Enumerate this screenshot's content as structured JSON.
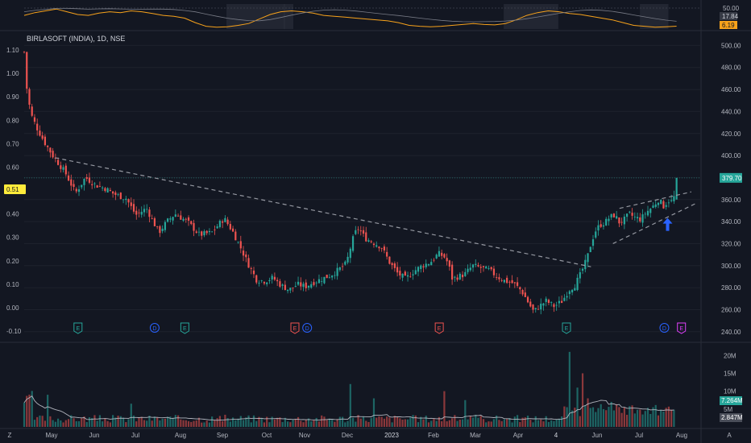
{
  "header": {
    "symbol_title": "BIRLASOFT (INDIA), 1D, NSE"
  },
  "colors": {
    "background": "#131722",
    "up": "#26a69a",
    "down": "#ef5350",
    "trendline": "#9598a1",
    "oscillator": "#f7a21b",
    "oscillator_sma": "#787b86",
    "volume_ma": "#b2b5be",
    "arrow": "#2962ff",
    "earnings": "#26a69a",
    "earnings_miss": "#ef5350",
    "dividend": "#2962ff",
    "earnings_upcoming": "#e040fb"
  },
  "chart_data": {
    "type": "candlestick",
    "title": "BIRLASOFT (INDIA), 1D, NSE",
    "x_ticks": [
      "Z",
      "May",
      "Jun",
      "Jul",
      "Aug",
      "Sep",
      "Oct",
      "Nov",
      "Dec",
      "2023",
      "Feb",
      "Mar",
      "Apr",
      "4",
      "Jun",
      "Jul",
      "Aug"
    ],
    "price_axis": {
      "ticks": [
        "500.00",
        "480.00",
        "460.00",
        "440.00",
        "420.00",
        "400.00",
        "380.00",
        "360.00",
        "340.00",
        "320.00",
        "300.00",
        "280.00",
        "260.00",
        "240.00"
      ],
      "range": [
        234,
        512
      ],
      "last_price_label": "379.70"
    },
    "left_axis": {
      "ticks": [
        "1.10",
        "1.00",
        "0.90",
        "0.80",
        "0.70",
        "0.60",
        "0.50",
        "0.40",
        "0.30",
        "0.20",
        "0.10",
        "0.00",
        "-0.10"
      ],
      "current_label": "0.51"
    },
    "price_path": {
      "points": [
        [
          0,
          494
        ],
        [
          1,
          503
        ],
        [
          2,
          485
        ],
        [
          3,
          462
        ],
        [
          8,
          438
        ],
        [
          15,
          426
        ],
        [
          25,
          412
        ],
        [
          35,
          400
        ],
        [
          50,
          385
        ],
        [
          63,
          366
        ],
        [
          75,
          380
        ],
        [
          88,
          373
        ],
        [
          100,
          370
        ],
        [
          110,
          365
        ],
        [
          125,
          361
        ],
        [
          137,
          346
        ],
        [
          150,
          352
        ],
        [
          165,
          330
        ],
        [
          175,
          340
        ],
        [
          185,
          347
        ],
        [
          200,
          340
        ],
        [
          215,
          328
        ],
        [
          230,
          330
        ],
        [
          245,
          343
        ],
        [
          255,
          332
        ],
        [
          265,
          317
        ],
        [
          275,
          301
        ],
        [
          285,
          287
        ],
        [
          295,
          286
        ],
        [
          305,
          289
        ],
        [
          315,
          282
        ],
        [
          325,
          278
        ],
        [
          335,
          283
        ],
        [
          345,
          281
        ],
        [
          355,
          285
        ],
        [
          365,
          288
        ],
        [
          375,
          291
        ],
        [
          385,
          296
        ],
        [
          395,
          302
        ],
        [
          400,
          316
        ],
        [
          405,
          329
        ],
        [
          410,
          334
        ],
        [
          418,
          325
        ],
        [
          428,
          321
        ],
        [
          438,
          317
        ],
        [
          448,
          303
        ],
        [
          458,
          293
        ],
        [
          468,
          288
        ],
        [
          478,
          295
        ],
        [
          488,
          300
        ],
        [
          498,
          303
        ],
        [
          508,
          311
        ],
        [
          515,
          308
        ],
        [
          520,
          302
        ],
        [
          525,
          288
        ],
        [
          532,
          290
        ],
        [
          540,
          292
        ],
        [
          550,
          300
        ],
        [
          560,
          298
        ],
        [
          570,
          296
        ],
        [
          580,
          290
        ],
        [
          590,
          286
        ],
        [
          600,
          284
        ],
        [
          610,
          277
        ],
        [
          620,
          264
        ],
        [
          625,
          258
        ],
        [
          630,
          262
        ],
        [
          640,
          268
        ],
        [
          650,
          263
        ],
        [
          660,
          268
        ],
        [
          668,
          278
        ],
        [
          675,
          282
        ],
        [
          682,
          292
        ],
        [
          690,
          306
        ],
        [
          695,
          320
        ],
        [
          700,
          331
        ],
        [
          706,
          337
        ],
        [
          712,
          339
        ],
        [
          718,
          344
        ],
        [
          724,
          346
        ],
        [
          730,
          339
        ],
        [
          736,
          342
        ],
        [
          742,
          347
        ],
        [
          748,
          344
        ],
        [
          756,
          342
        ],
        [
          762,
          348
        ],
        [
          770,
          353
        ],
        [
          778,
          360
        ],
        [
          784,
          354
        ],
        [
          790,
          359
        ],
        [
          796,
          358
        ],
        [
          800,
          379.7
        ]
      ]
    },
    "trendlines": [
      {
        "name": "descending",
        "from": [
          38,
          398
        ],
        "to": [
          695,
          299
        ]
      },
      {
        "name": "rising-support",
        "from": [
          722,
          320
        ],
        "to": [
          825,
          357
        ]
      },
      {
        "name": "upper-resistance",
        "from": [
          730,
          352
        ],
        "to": [
          818,
          367
        ]
      }
    ],
    "oscillator": {
      "y_ticks": [
        "50.00"
      ],
      "values_shown": [
        "17.84",
        "6.19"
      ],
      "series": [
        30,
        36,
        40,
        44,
        38,
        32,
        30,
        35,
        38,
        36,
        40,
        38,
        34,
        30,
        28,
        24,
        14,
        6,
        4,
        5,
        8,
        12,
        22,
        32,
        38,
        40,
        38,
        35,
        30,
        28,
        26,
        24,
        22,
        20,
        18,
        14,
        8,
        6,
        5,
        6,
        8,
        10,
        12,
        10,
        9,
        12,
        20,
        30,
        36,
        40,
        38,
        34,
        32,
        28,
        24,
        20,
        14,
        8,
        6,
        4,
        5,
        6.19
      ]
    },
    "volume": {
      "y_ticks": [
        "20M",
        "15M",
        "10M",
        "5M"
      ],
      "range": [
        0,
        23
      ],
      "current_label": "7.264M",
      "ma_label": "2.847M"
    },
    "events": [
      {
        "type": "E",
        "kind": "earnings"
      },
      {
        "type": "D",
        "kind": "dividend"
      },
      {
        "type": "E",
        "kind": "earnings"
      },
      {
        "type": "E",
        "kind": "earnings_miss"
      },
      {
        "type": "D",
        "kind": "dividend"
      },
      {
        "type": "E",
        "kind": "earnings_miss"
      },
      {
        "type": "E",
        "kind": "earnings"
      },
      {
        "type": "D",
        "kind": "dividend"
      },
      {
        "type": "E",
        "kind": "earnings_upcoming"
      }
    ],
    "grid": true
  },
  "corner": {
    "timezone_label": "A"
  }
}
